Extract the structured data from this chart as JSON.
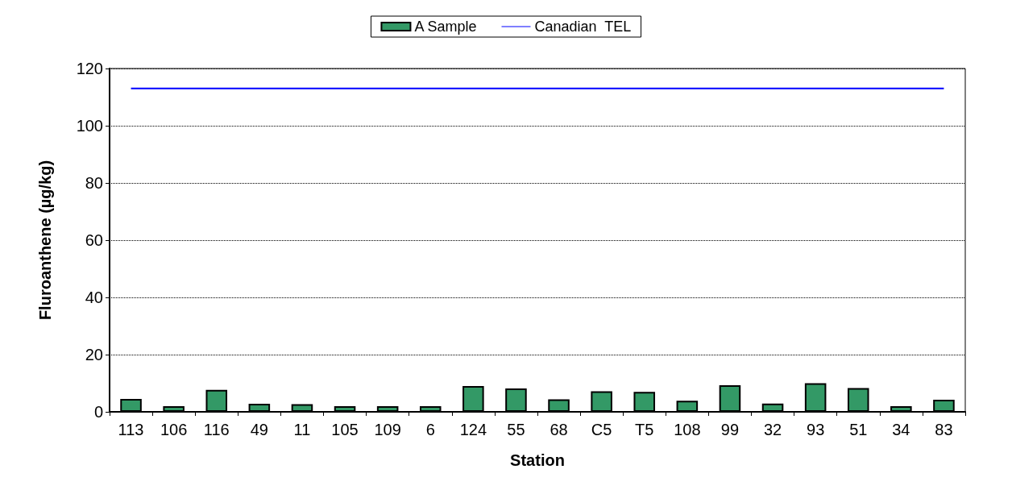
{
  "chart_data": {
    "type": "bar",
    "xlabel": "Station",
    "ylabel": "Fluroanthene (µg/kg)",
    "categories": [
      "113",
      "106",
      "116",
      "49",
      "11",
      "105",
      "109",
      "6",
      "124",
      "55",
      "68",
      "C5",
      "T5",
      "108",
      "99",
      "32",
      "93",
      "51",
      "34",
      "83"
    ],
    "series": [
      {
        "name": "A Sample",
        "color": "#339966",
        "values": [
          4.5,
          2,
          7.7,
          2.8,
          2.7,
          2,
          2,
          2,
          9,
          8.2,
          4.4,
          7.2,
          7,
          3.9,
          9.3,
          2.9,
          10,
          8.3,
          2,
          4.2
        ]
      },
      {
        "name": "Canadian  TEL",
        "type": "line",
        "color": "#0000ff",
        "values": [
          113,
          113,
          113,
          113,
          113,
          113,
          113,
          113,
          113,
          113,
          113,
          113,
          113,
          113,
          113,
          113,
          113,
          113,
          113,
          113
        ]
      }
    ],
    "ylim": [
      0,
      120
    ],
    "yticks": [
      0,
      20,
      40,
      60,
      80,
      100,
      120
    ],
    "grid": "y",
    "legend": "top",
    "marker": "none"
  }
}
